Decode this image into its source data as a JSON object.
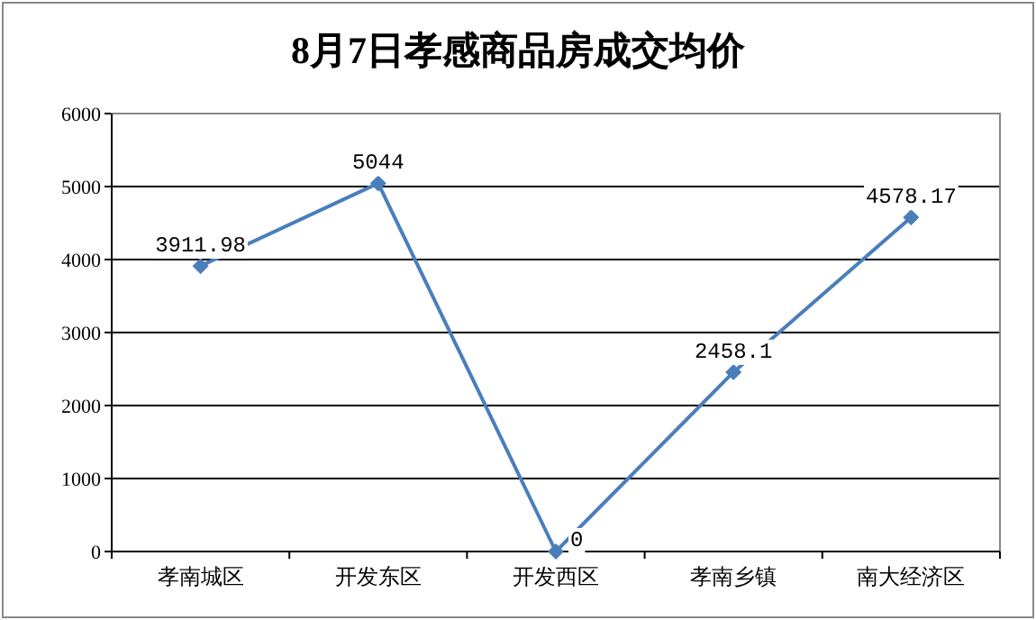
{
  "chart_data": {
    "type": "line",
    "title": "8月7日孝感商品房成交均价",
    "categories": [
      "孝南城区",
      "开发东区",
      "开发西区",
      "孝南乡镇",
      "南大经济区"
    ],
    "series": [
      {
        "color": "#4a7ebb",
        "values": [
          3911.98,
          5044,
          0,
          2458.1,
          4578.17
        ]
      }
    ],
    "ylim": [
      0,
      6000
    ],
    "yticks": [
      0,
      1000,
      2000,
      3000,
      4000,
      5000,
      6000
    ],
    "grid": "y",
    "marker": "diamond",
    "line_style": "solid",
    "data_labels": true
  }
}
